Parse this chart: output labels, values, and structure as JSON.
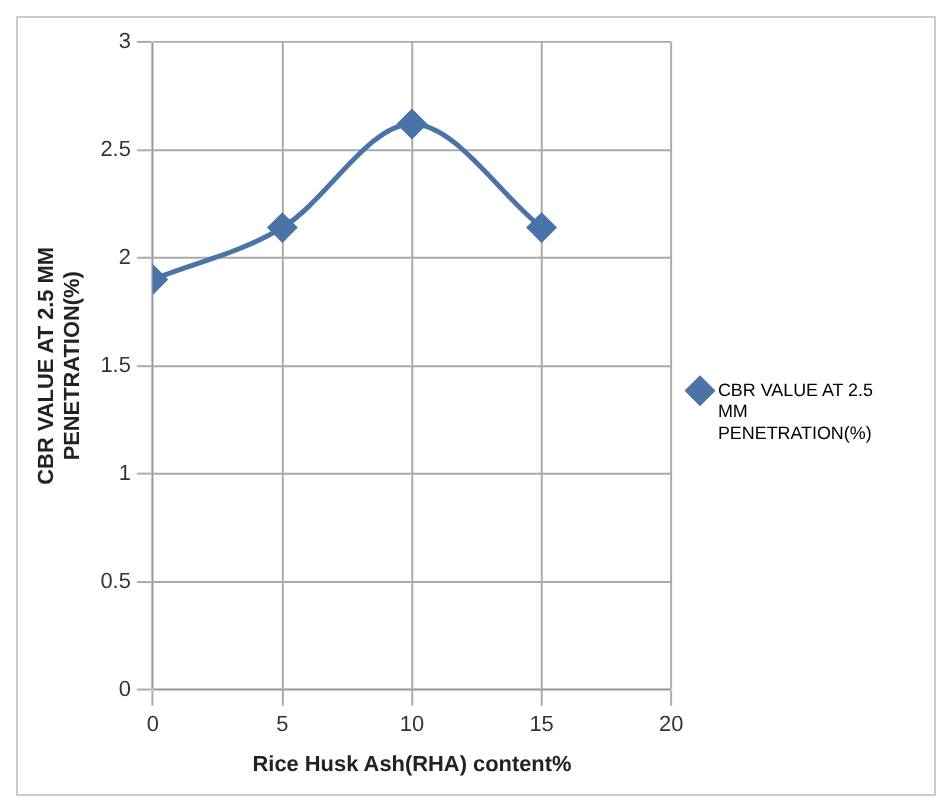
{
  "chart_data": {
    "type": "line",
    "xlabel": "Rice Husk Ash(RHA) content%",
    "ylabel": "CBR VALUE AT 2.5 MM PENETRATION(%)",
    "x": [
      0,
      5,
      10,
      15
    ],
    "series": [
      {
        "name": "CBR VALUE AT 2.5 MM PENETRATION(%)",
        "color": "#4a74a8",
        "values": [
          1.9,
          2.14,
          2.62,
          2.14
        ]
      }
    ],
    "xlim": [
      0,
      20
    ],
    "xticks": [
      0,
      5,
      10,
      15,
      20
    ],
    "ylim": [
      0,
      3
    ],
    "yticks": [
      0,
      0.5,
      1,
      1.5,
      2,
      2.5,
      3
    ],
    "grid": true,
    "legend": "right",
    "marker": "diamond"
  }
}
